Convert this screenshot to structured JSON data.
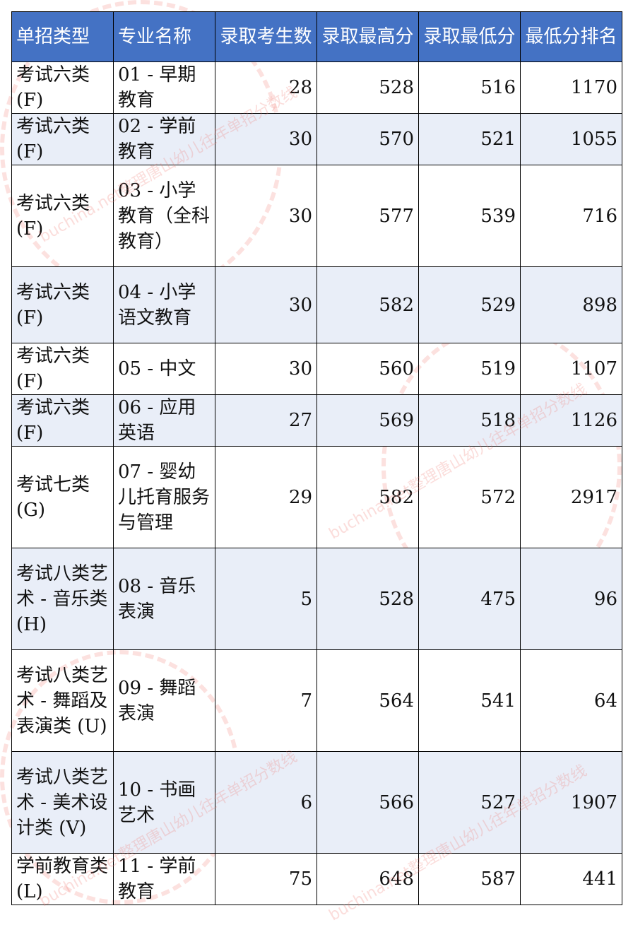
{
  "headers": [
    "单招类型",
    "专业名称",
    "录取考生数",
    "录取最高分",
    "录取最低分",
    "最低分排名"
  ],
  "rows": [
    {
      "type": "考试六类(F)",
      "major": "01 - 早期教育",
      "count": "28",
      "max": "528",
      "min": "516",
      "rank": "1170",
      "h": 72
    },
    {
      "type": "考试六类(F)",
      "major": "02 - 学前教育",
      "count": "30",
      "max": "570",
      "min": "521",
      "rank": "1055",
      "h": 72
    },
    {
      "type": "考试六类(F)",
      "major": "03 - 小学教育（全科教育）",
      "count": "30",
      "max": "577",
      "min": "539",
      "rank": "716",
      "h": 144
    },
    {
      "type": "考试六类(F)",
      "major": "04 - 小学语文教育",
      "count": "30",
      "max": "582",
      "min": "529",
      "rank": "898",
      "h": 108
    },
    {
      "type": "考试六类(F)",
      "major": "05 - 中文",
      "count": "30",
      "max": "560",
      "min": "519",
      "rank": "1107",
      "h": 72
    },
    {
      "type": "考试六类(F)",
      "major": "06 - 应用英语",
      "count": "27",
      "max": "569",
      "min": "518",
      "rank": "1126",
      "h": 72
    },
    {
      "type": "考试七类(G)",
      "major": "07 - 婴幼儿托育服务与管理",
      "count": "29",
      "max": "582",
      "min": "572",
      "rank": "2917",
      "h": 144
    },
    {
      "type": "考试八类艺术 - 音乐类(H)",
      "major": "08 - 音乐表演",
      "count": "5",
      "max": "528",
      "min": "475",
      "rank": "96",
      "h": 144
    },
    {
      "type": "考试八类艺术 - 舞蹈及表演类 (U)",
      "major": "09 - 舞蹈表演",
      "count": "7",
      "max": "564",
      "min": "541",
      "rank": "64",
      "h": 144
    },
    {
      "type": "考试八类艺术 - 美术设计类 (V)",
      "major": "10 - 书画艺术",
      "count": "6",
      "max": "566",
      "min": "527",
      "rank": "1907",
      "h": 144
    },
    {
      "type": "学前教育类(L)",
      "major": "11 - 学前教育",
      "count": "75",
      "max": "648",
      "min": "587",
      "rank": "441",
      "h": 72
    }
  ],
  "watermark": "buchina.net整理唐山幼儿往年单招分数线",
  "colors": {
    "header_bg": "#4472C4",
    "alt_row_bg": "#E9EEF8",
    "watermark": "#F0786E"
  }
}
